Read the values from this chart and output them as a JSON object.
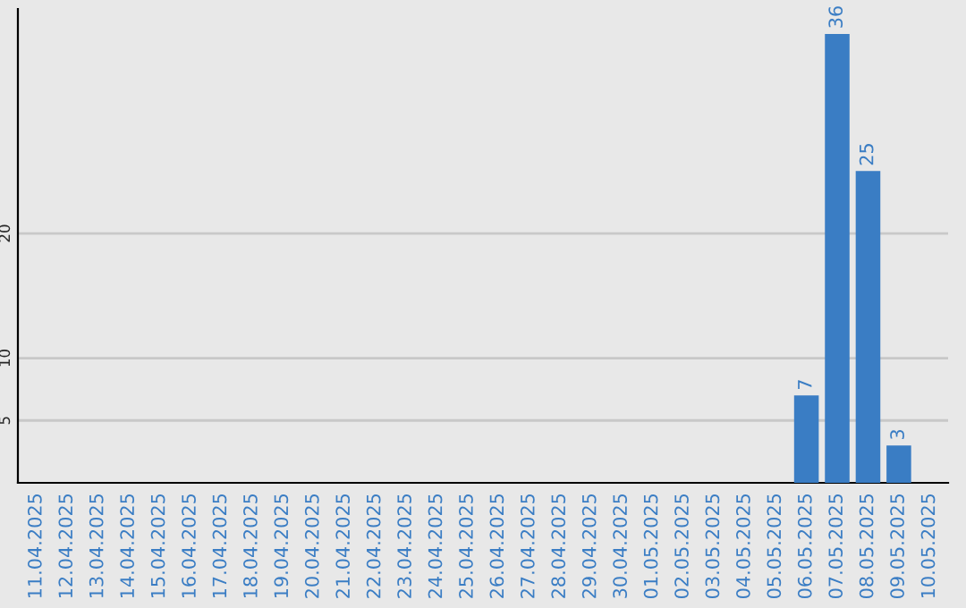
{
  "chart_data": {
    "type": "bar",
    "categories": [
      "11.04.2025",
      "12.04.2025",
      "13.04.2025",
      "14.04.2025",
      "15.04.2025",
      "16.04.2025",
      "17.04.2025",
      "18.04.2025",
      "19.04.2025",
      "20.04.2025",
      "21.04.2025",
      "22.04.2025",
      "23.04.2025",
      "24.04.2025",
      "25.04.2025",
      "26.04.2025",
      "27.04.2025",
      "28.04.2025",
      "29.04.2025",
      "30.04.2025",
      "01.05.2025",
      "02.05.2025",
      "03.05.2025",
      "04.05.2025",
      "05.05.2025",
      "06.05.2025",
      "07.05.2025",
      "08.05.2025",
      "09.05.2025",
      "10.05.2025"
    ],
    "values": [
      0,
      0,
      0,
      0,
      0,
      0,
      0,
      0,
      0,
      0,
      0,
      0,
      0,
      0,
      0,
      0,
      0,
      0,
      0,
      0,
      0,
      0,
      0,
      0,
      0,
      7,
      36,
      25,
      3,
      0
    ],
    "value_labels": [
      null,
      null,
      null,
      null,
      null,
      null,
      null,
      null,
      null,
      null,
      null,
      null,
      null,
      null,
      null,
      null,
      null,
      null,
      null,
      null,
      null,
      null,
      null,
      null,
      null,
      "7",
      "36",
      "25",
      "3",
      null
    ],
    "color": "#3a7dc4",
    "ylim": [
      0,
      38
    ],
    "yticks": [
      5,
      10,
      20
    ],
    "grid": "y",
    "legend": false
  }
}
